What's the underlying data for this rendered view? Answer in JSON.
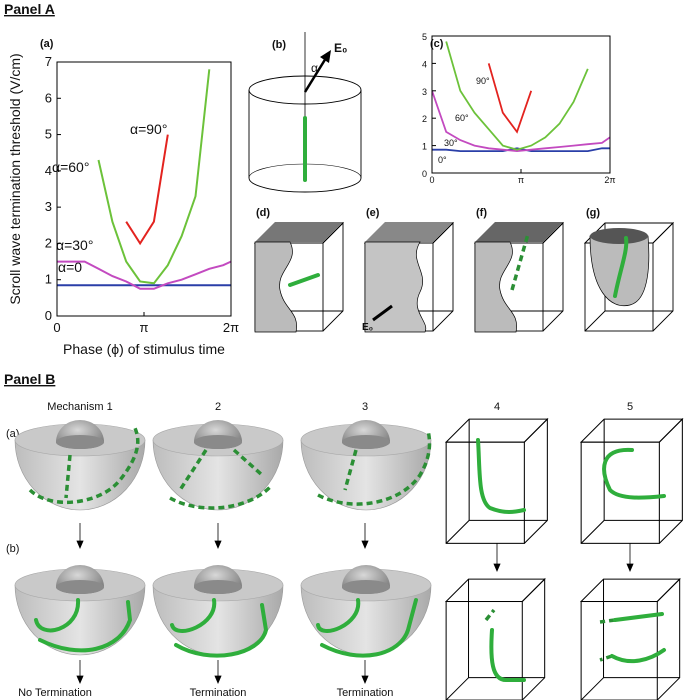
{
  "chart_data": [
    {
      "type": "line",
      "panel_label": "(a)",
      "xlabel": "Phase (ϕ) of stimulus time",
      "ylabel": "Scroll wave termination threshold (V/cm)",
      "x": [
        0,
        0.5,
        1,
        1.5,
        2,
        2.5,
        3,
        3.5,
        4,
        4.5,
        5,
        5.5,
        6,
        6.28
      ],
      "xlim": [
        0,
        6.2832
      ],
      "ylim": [
        0,
        7
      ],
      "xticks": [
        0,
        {
          "value": 3.1416,
          "label": "π"
        },
        {
          "value": 6.2832,
          "label": "2π"
        }
      ],
      "yticks": [
        0,
        1,
        2,
        3,
        4,
        5,
        6,
        7
      ],
      "series": [
        {
          "name": "α=0",
          "color": "#2a3fa8",
          "values": [
            0.85,
            0.85,
            0.85,
            0.85,
            0.85,
            0.85,
            0.85,
            0.85,
            0.85,
            0.85,
            0.85,
            0.85,
            0.85,
            0.85
          ]
        },
        {
          "name": "α=30°",
          "color": "#c34ac0",
          "values": [
            1.5,
            1.5,
            1.5,
            1.3,
            1.1,
            0.95,
            0.75,
            0.75,
            0.9,
            1.0,
            1.15,
            1.3,
            1.4,
            1.5
          ]
        },
        {
          "name": "α=60°",
          "color": "#6cc23a",
          "values": [
            null,
            null,
            null,
            4.3,
            2.6,
            1.5,
            0.95,
            0.9,
            1.4,
            2.2,
            3.3,
            6.8,
            null,
            null
          ]
        },
        {
          "name": "α=90°",
          "color": "#e3231f",
          "values": [
            null,
            null,
            null,
            null,
            null,
            2.6,
            2.0,
            2.6,
            5.0,
            null,
            null,
            null,
            null,
            null
          ]
        }
      ]
    },
    {
      "type": "line",
      "panel_label": "(c)",
      "x": [
        0,
        0.5,
        1,
        1.5,
        2,
        2.5,
        3,
        3.5,
        4,
        4.5,
        5,
        5.5,
        6,
        6.28
      ],
      "xlim": [
        0,
        6.2832
      ],
      "ylim": [
        0,
        5
      ],
      "xticks": [
        0,
        {
          "value": 3.1416,
          "label": "π"
        },
        {
          "value": 6.2832,
          "label": "2π"
        }
      ],
      "yticks": [
        0,
        1,
        2,
        3,
        4,
        5
      ],
      "series": [
        {
          "name": "0°",
          "color": "#2a3fa8",
          "values": [
            0.85,
            0.85,
            0.8,
            0.8,
            0.8,
            0.8,
            0.9,
            0.8,
            0.8,
            0.8,
            0.8,
            0.8,
            0.9,
            0.9
          ]
        },
        {
          "name": "30°",
          "color": "#c34ac0",
          "values": [
            3.0,
            1.5,
            1.2,
            1.0,
            0.9,
            0.85,
            0.8,
            0.85,
            0.9,
            0.95,
            1.0,
            1.05,
            1.1,
            1.3
          ]
        },
        {
          "name": "60°",
          "color": "#6cc23a",
          "values": [
            null,
            4.8,
            3.0,
            2.2,
            1.6,
            1.0,
            0.85,
            1.0,
            1.3,
            1.8,
            2.6,
            3.8,
            null,
            null
          ]
        },
        {
          "name": "90°",
          "color": "#e3231f",
          "values": [
            null,
            null,
            null,
            null,
            4.0,
            2.2,
            1.5,
            3.0,
            null,
            null,
            null,
            null,
            null,
            null
          ]
        }
      ]
    }
  ],
  "panel_a": {
    "title": "Panel A",
    "b_label": "(b)",
    "alpha": "α",
    "field": "E₀",
    "d_label": "(d)",
    "e_label": "(e)",
    "e_field": "E₀",
    "f_label": "(f)",
    "g_label": "(g)"
  },
  "panel_b": {
    "title": "Panel B",
    "columns": [
      "Mechanism 1",
      "2",
      "3",
      "4",
      "5"
    ],
    "row_labels": [
      "(a)",
      "(b)"
    ],
    "outcomes": [
      "No Termination",
      "Termination",
      "Termination"
    ]
  }
}
